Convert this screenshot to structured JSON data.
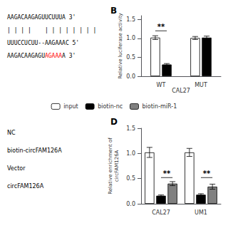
{
  "chart_data": [
    {
      "type": "text",
      "lines": [
        [
          {
            "text": "AAGACAAGAGUUCUUUA 3'"
          }
        ],
        [
          {
            "text": "| | | |"
          },
          {
            "text": "| | | | | | | |"
          }
        ],
        [
          {
            "text": "UUUCCUCUU--AAGAAAC 5'"
          }
        ],
        [
          {
            "text": "AAGACAAGAGU"
          },
          {
            "text": "AGAAA",
            "color": "red"
          },
          {
            "text": "A 3'"
          }
        ]
      ]
    },
    {
      "type": "bar",
      "title": "B",
      "xlabel": "CAL27",
      "ylabel": "Relative luciferase activity",
      "categories": [
        "WT",
        "MUT"
      ],
      "series": [
        {
          "color": "white",
          "values": [
            1.02,
            1.01
          ],
          "errors": [
            0.05,
            0.04
          ]
        },
        {
          "color": "black",
          "values": [
            0.31,
            1.02
          ],
          "errors": [
            0.025,
            0.04
          ]
        }
      ],
      "ylim": [
        0,
        1.6
      ],
      "yticks": [
        {
          "value": 0,
          "label": "0.0"
        },
        0.5,
        {
          "value": 1,
          "label": "1.0"
        },
        1.5
      ],
      "grid": false,
      "annotations": [
        {
          "text": "**",
          "category": "WT",
          "y": 1.2
        }
      ]
    },
    {
      "type": "text",
      "lines": [
        [
          {
            "text": "NC"
          }
        ],
        [
          {
            "text": "biotin-circFAM126A"
          }
        ],
        [
          {
            "text": "Vector"
          }
        ],
        [
          {
            "text": "circFAM126A"
          }
        ]
      ]
    },
    {
      "type": "bar",
      "title": "D",
      "ylabel": "Relative enrichment of\ncircFAM126A",
      "categories": [
        "CAL27",
        "UM1"
      ],
      "series": [
        {
          "name": "input",
          "color": "white",
          "values": [
            1.02,
            1.02
          ],
          "errors": [
            0.1,
            0.08
          ]
        },
        {
          "name": "biotin-nc",
          "color": "black",
          "values": [
            0.16,
            0.18
          ],
          "errors": [
            0.015,
            0.02
          ]
        },
        {
          "name": "biotin-miR-1",
          "color": "#808080",
          "values": [
            0.4,
            0.34
          ],
          "errors": [
            0.04,
            0.05
          ]
        }
      ],
      "ylim": [
        0,
        1.5
      ],
      "yticks": [
        {
          "value": 0,
          "label": "0.0"
        },
        0.5,
        {
          "value": 1,
          "label": "1.0"
        },
        1.5
      ],
      "grid": false,
      "legend": "top",
      "annotations": [
        {
          "text": "**",
          "category": "CAL27",
          "y": 0.52
        },
        {
          "text": "**",
          "category": "UM1",
          "y": 0.52
        }
      ]
    }
  ]
}
